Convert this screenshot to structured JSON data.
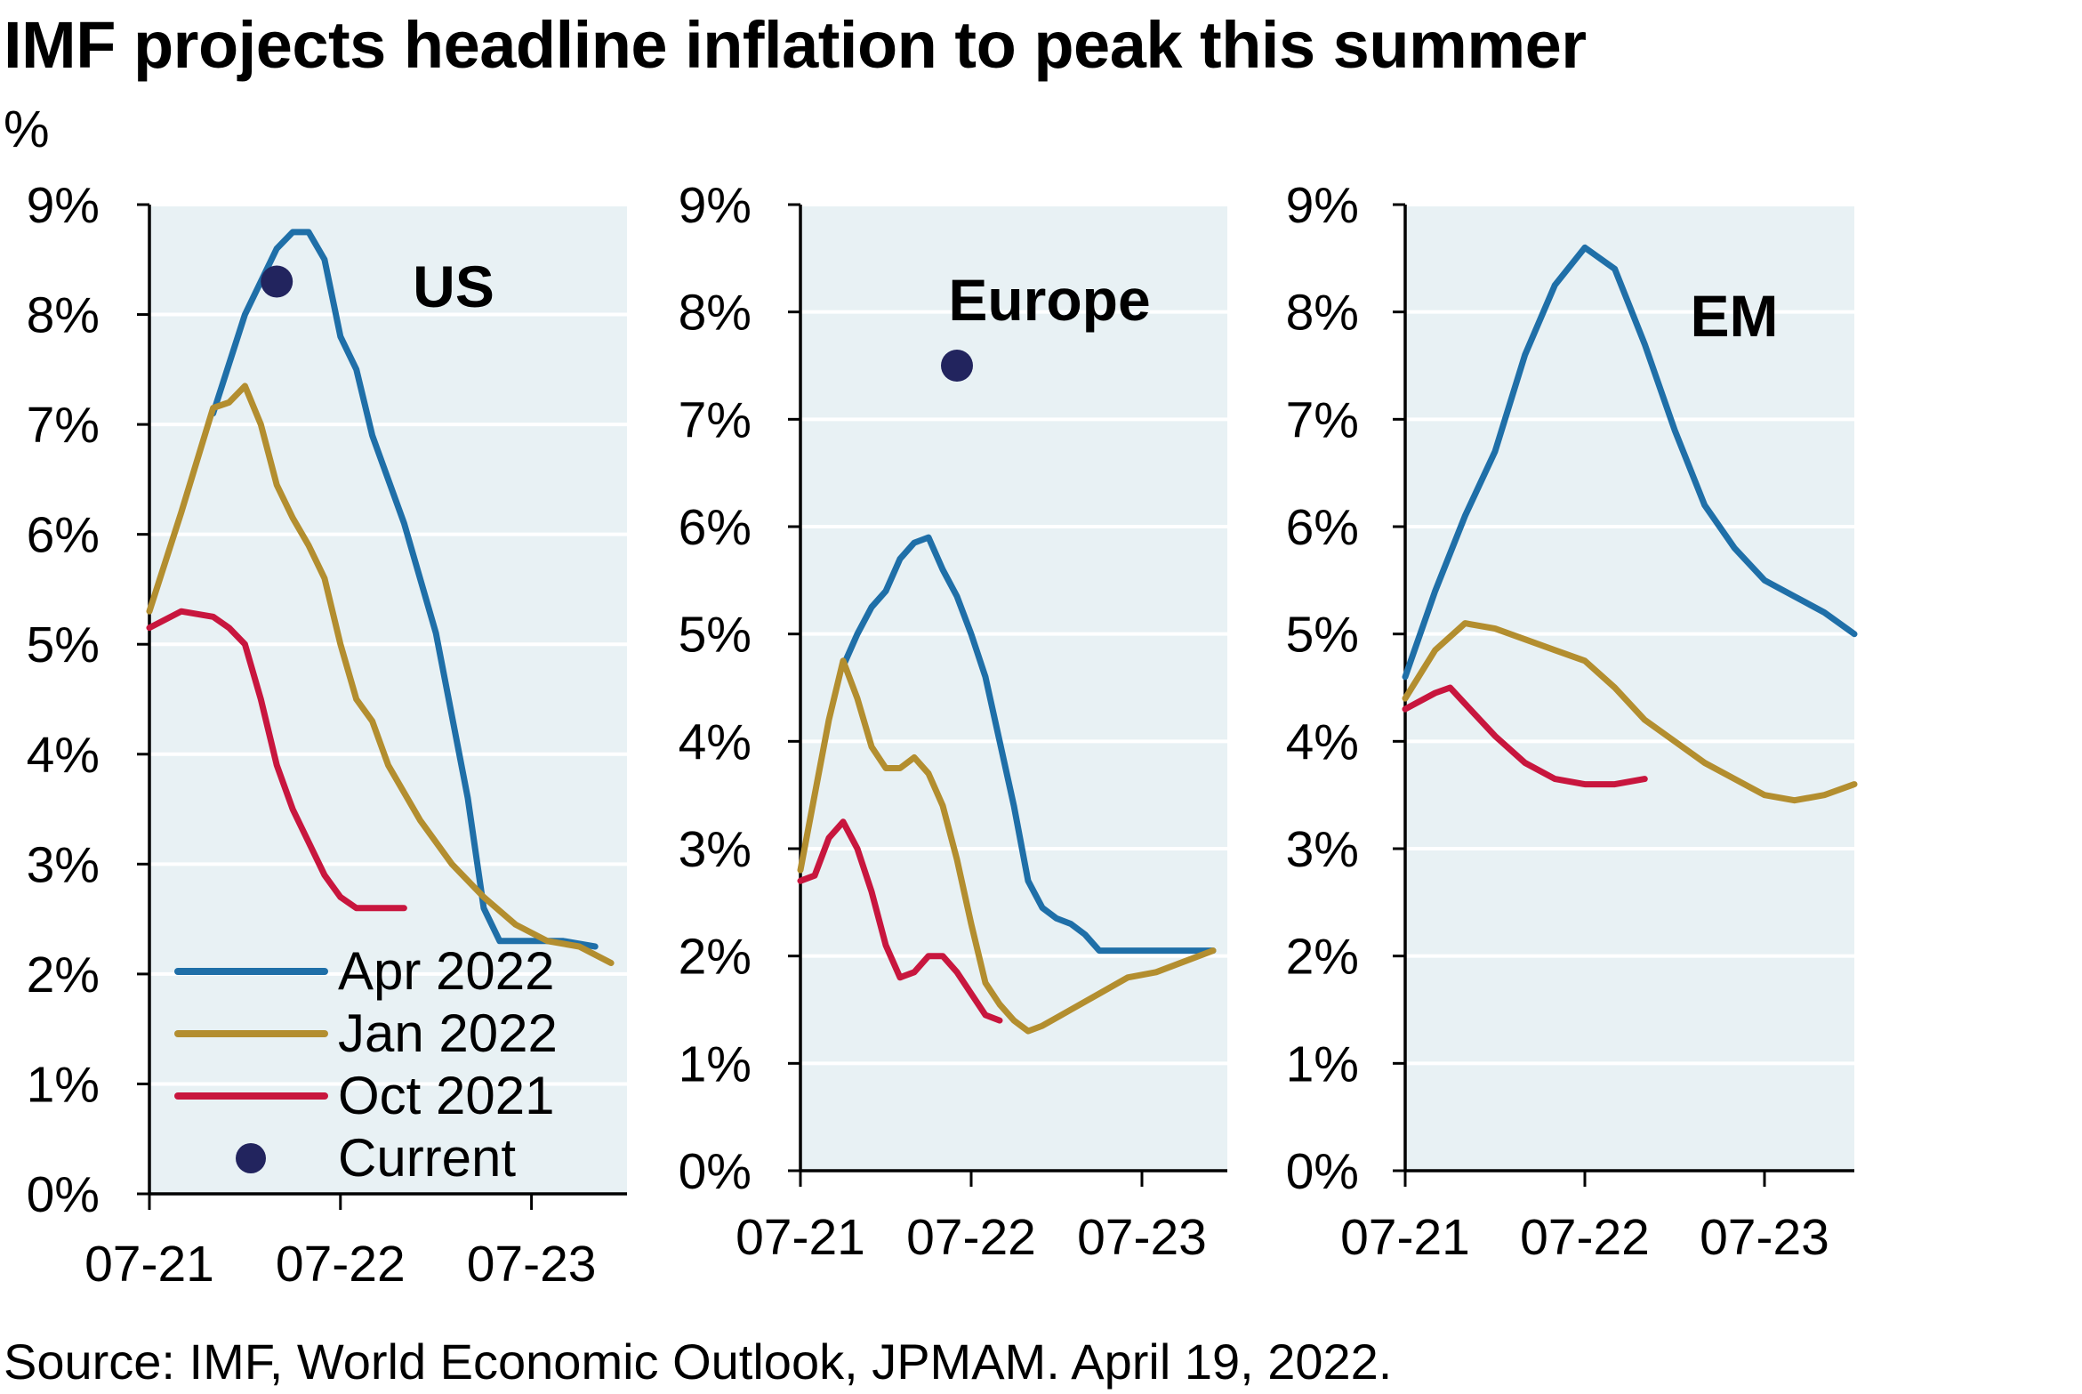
{
  "title": "IMF projects headline inflation to peak this summer",
  "unit": "%",
  "source": "Source: IMF, World Economic Outlook, JPMAM. April 19, 2022.",
  "colors": {
    "plot_bg": "#e8f1f4",
    "grid": "#ffffff",
    "axis": "#000000",
    "apr_2022": "#1f6fa8",
    "jan_2022": "#b38e2f",
    "oct_2021": "#c8163e",
    "current": "#22245e"
  },
  "legend": {
    "placement": "bottom-left of US panel",
    "items": [
      {
        "label": "Apr 2022",
        "color_key": "apr_2022",
        "marker": "line"
      },
      {
        "label": "Jan 2022",
        "color_key": "jan_2022",
        "marker": "line"
      },
      {
        "label": "Oct 2021",
        "color_key": "oct_2021",
        "marker": "line"
      },
      {
        "label": "Current",
        "color_key": "current",
        "marker": "dot"
      }
    ]
  },
  "chart_data": [
    {
      "type": "line",
      "title": "US",
      "ylim": [
        0,
        9
      ],
      "yticks": [
        "0%",
        "1%",
        "2%",
        "3%",
        "4%",
        "5%",
        "6%",
        "7%",
        "8%",
        "9%"
      ],
      "xlim": [
        "2021-07",
        "2024-01"
      ],
      "xticks": [
        "07-21",
        "07-22",
        "07-23"
      ],
      "grid": true,
      "series": [
        {
          "name": "Apr 2022",
          "color_key": "apr_2022",
          "x": [
            "2021-11",
            "2022-01",
            "2022-03",
            "2022-04",
            "2022-05",
            "2022-06",
            "2022-07",
            "2022-08",
            "2022-09",
            "2022-11",
            "2023-01",
            "2023-03",
            "2023-04",
            "2023-05",
            "2023-07",
            "2023-09",
            "2023-11"
          ],
          "values": [
            7.1,
            8.0,
            8.6,
            8.75,
            8.75,
            8.5,
            7.8,
            7.5,
            6.9,
            6.1,
            5.1,
            3.6,
            2.6,
            2.3,
            2.3,
            2.3,
            2.25
          ]
        },
        {
          "name": "Jan 2022",
          "color_key": "jan_2022",
          "x": [
            "2021-07",
            "2021-09",
            "2021-11",
            "2021-12",
            "2022-01",
            "2022-02",
            "2022-03",
            "2022-04",
            "2022-05",
            "2022-06",
            "2022-07",
            "2022-08",
            "2022-09",
            "2022-10",
            "2022-12",
            "2023-02",
            "2023-04",
            "2023-06",
            "2023-08",
            "2023-10",
            "2023-12"
          ],
          "values": [
            5.3,
            6.2,
            7.15,
            7.2,
            7.35,
            7.0,
            6.45,
            6.15,
            5.9,
            5.6,
            5.0,
            4.5,
            4.3,
            3.9,
            3.4,
            3.0,
            2.7,
            2.45,
            2.3,
            2.25,
            2.1
          ]
        },
        {
          "name": "Oct 2021",
          "color_key": "oct_2021",
          "x": [
            "2021-07",
            "2021-09",
            "2021-11",
            "2021-12",
            "2022-01",
            "2022-02",
            "2022-03",
            "2022-04",
            "2022-05",
            "2022-06",
            "2022-07",
            "2022-08",
            "2022-09",
            "2022-10",
            "2022-11"
          ],
          "values": [
            5.15,
            5.3,
            5.25,
            5.15,
            5.0,
            4.5,
            3.9,
            3.5,
            3.2,
            2.9,
            2.7,
            2.6,
            2.6,
            2.6,
            2.6
          ]
        }
      ],
      "current": {
        "label": "Current",
        "x": "2022-03",
        "value": 8.3
      }
    },
    {
      "type": "line",
      "title": "Europe",
      "ylim": [
        0,
        9
      ],
      "yticks": [
        "0%",
        "1%",
        "2%",
        "3%",
        "4%",
        "5%",
        "6%",
        "7%",
        "8%",
        "9%"
      ],
      "xlim": [
        "2021-07",
        "2024-01"
      ],
      "xticks": [
        "07-21",
        "07-22",
        "07-23"
      ],
      "grid": true,
      "series": [
        {
          "name": "Apr 2022",
          "color_key": "apr_2022",
          "x": [
            "2021-10",
            "2021-11",
            "2021-12",
            "2022-01",
            "2022-02",
            "2022-03",
            "2022-04",
            "2022-05",
            "2022-06",
            "2022-07",
            "2022-08",
            "2022-09",
            "2022-10",
            "2022-11",
            "2022-12",
            "2023-01",
            "2023-02",
            "2023-03",
            "2023-04",
            "2023-06",
            "2023-08",
            "2023-10",
            "2023-12"
          ],
          "values": [
            4.7,
            5.0,
            5.25,
            5.4,
            5.7,
            5.85,
            5.9,
            5.6,
            5.35,
            5.0,
            4.6,
            4.0,
            3.4,
            2.7,
            2.45,
            2.35,
            2.3,
            2.2,
            2.05,
            2.05,
            2.05,
            2.05,
            2.05
          ]
        },
        {
          "name": "Jan 2022",
          "color_key": "jan_2022",
          "x": [
            "2021-07",
            "2021-08",
            "2021-09",
            "2021-10",
            "2021-11",
            "2021-12",
            "2022-01",
            "2022-02",
            "2022-03",
            "2022-04",
            "2022-05",
            "2022-06",
            "2022-07",
            "2022-08",
            "2022-09",
            "2022-10",
            "2022-11",
            "2022-12",
            "2023-02",
            "2023-04",
            "2023-06",
            "2023-08",
            "2023-10",
            "2023-12"
          ],
          "values": [
            2.8,
            3.5,
            4.2,
            4.75,
            4.4,
            3.95,
            3.75,
            3.75,
            3.85,
            3.7,
            3.4,
            2.9,
            2.3,
            1.75,
            1.55,
            1.4,
            1.3,
            1.35,
            1.5,
            1.65,
            1.8,
            1.85,
            1.95,
            2.05
          ]
        },
        {
          "name": "Oct 2021",
          "color_key": "oct_2021",
          "x": [
            "2021-07",
            "2021-08",
            "2021-09",
            "2021-10",
            "2021-11",
            "2021-12",
            "2022-01",
            "2022-02",
            "2022-03",
            "2022-04",
            "2022-05",
            "2022-06",
            "2022-07",
            "2022-08",
            "2022-09"
          ],
          "values": [
            2.7,
            2.75,
            3.1,
            3.25,
            3.0,
            2.6,
            2.1,
            1.8,
            1.85,
            2.0,
            2.0,
            1.85,
            1.65,
            1.45,
            1.4
          ]
        }
      ],
      "current": {
        "label": "Current",
        "x": "2022-06",
        "value": 7.5
      }
    },
    {
      "type": "line",
      "title": "EM",
      "ylim": [
        0,
        9
      ],
      "yticks": [
        "0%",
        "1%",
        "2%",
        "3%",
        "4%",
        "5%",
        "6%",
        "7%",
        "8%",
        "9%"
      ],
      "xlim": [
        "2021-07",
        "2024-01"
      ],
      "xticks": [
        "07-21",
        "07-22",
        "07-23"
      ],
      "grid": true,
      "series": [
        {
          "name": "Apr 2022",
          "color_key": "apr_2022",
          "x": [
            "2021-07",
            "2021-09",
            "2021-11",
            "2022-01",
            "2022-03",
            "2022-05",
            "2022-07",
            "2022-09",
            "2022-11",
            "2023-01",
            "2023-03",
            "2023-05",
            "2023-07",
            "2023-09",
            "2023-11",
            "2024-01"
          ],
          "values": [
            4.6,
            5.4,
            6.1,
            6.7,
            7.6,
            8.25,
            8.6,
            8.4,
            7.7,
            6.9,
            6.2,
            5.8,
            5.5,
            5.35,
            5.2,
            5.0
          ]
        },
        {
          "name": "Jan 2022",
          "color_key": "jan_2022",
          "x": [
            "2021-07",
            "2021-09",
            "2021-11",
            "2022-01",
            "2022-03",
            "2022-05",
            "2022-07",
            "2022-09",
            "2022-11",
            "2023-01",
            "2023-03",
            "2023-05",
            "2023-07",
            "2023-09",
            "2023-11",
            "2024-01"
          ],
          "values": [
            4.4,
            4.85,
            5.1,
            5.05,
            4.95,
            4.85,
            4.75,
            4.5,
            4.2,
            4.0,
            3.8,
            3.65,
            3.5,
            3.45,
            3.5,
            3.6
          ]
        },
        {
          "name": "Oct 2021",
          "color_key": "oct_2021",
          "x": [
            "2021-07",
            "2021-09",
            "2021-10",
            "2021-11",
            "2022-01",
            "2022-03",
            "2022-05",
            "2022-07",
            "2022-09",
            "2022-11"
          ],
          "values": [
            4.3,
            4.45,
            4.5,
            4.35,
            4.05,
            3.8,
            3.65,
            3.6,
            3.6,
            3.65
          ]
        }
      ],
      "current": null
    }
  ]
}
